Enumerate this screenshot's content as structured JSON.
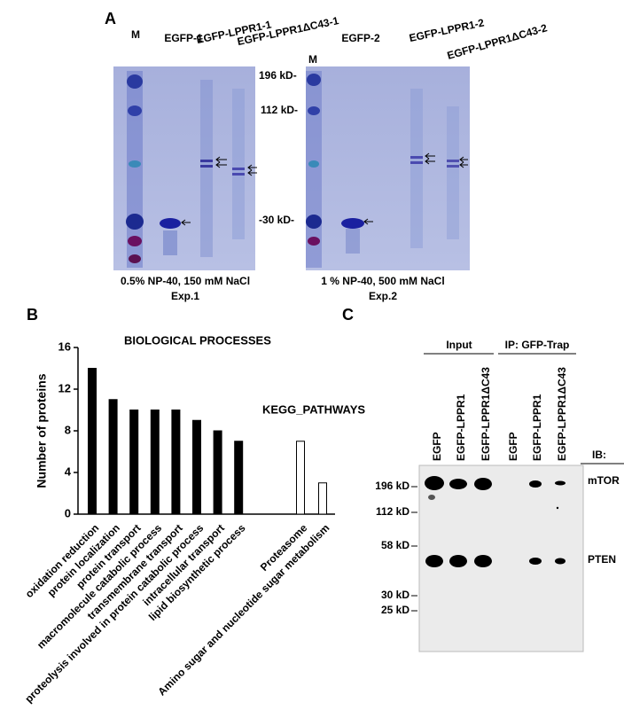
{
  "panel_a": {
    "label": "A",
    "gels": [
      {
        "lanes": [
          "M",
          "EGFP-1",
          "EGFP-LPPR1-1",
          "EGFP-LPPR1ΔC43-1"
        ],
        "markers": [
          "196 kD-",
          "112 kD-",
          "-30 kD-"
        ],
        "condition": "0.5% NP-40, 150 mM NaCl",
        "experiment": "Exp.1"
      },
      {
        "lanes": [
          "M",
          "EGFP-2",
          "EGFP-LPPR1-2",
          "EGFP-LPPR1ΔC43-2"
        ],
        "condition": "1 % NP-40, 500 mM NaCl",
        "experiment": "Exp.2"
      }
    ]
  },
  "chart_data": {
    "type": "bar",
    "panel_label": "B",
    "y_label": "Number of proteins",
    "categories": [
      "oxidation reduction",
      "protein localization",
      "protein transport",
      "macromolecule catabolic process",
      "transmembrane transport",
      "proteolysis involved in protein catabolic process",
      "intracellular transport",
      "lipid biosynthetic process",
      "Proteasome",
      "Amino sugar and nucleotide sugar metabolism"
    ],
    "series": [
      {
        "name": "BIOLOGICAL PROCESSES",
        "color": "#000000",
        "values": [
          14,
          11,
          10,
          10,
          10,
          9,
          8,
          7,
          null,
          null
        ]
      },
      {
        "name": "KEGG_PATHWAYS",
        "color": "#ffffff",
        "values": [
          null,
          null,
          null,
          null,
          null,
          null,
          null,
          null,
          7,
          3
        ]
      }
    ],
    "ylim": [
      0,
      16
    ],
    "yticks": [
      0,
      4,
      8,
      12,
      16
    ]
  },
  "panel_c": {
    "label": "C",
    "groups": [
      "Input",
      "IP: GFP-Trap"
    ],
    "lanes": [
      "EGFP",
      "EGFP-LPPR1",
      "EGFP-LPPR1ΔC43",
      "EGFP",
      "EGFP-LPPR1",
      "EGFP-LPPR1ΔC43"
    ],
    "ib_label": "IB:",
    "targets": [
      "mTOR",
      "PTEN"
    ],
    "markers": [
      "196 kD",
      "112 kD",
      "58 kD",
      "30 kD",
      "25 kD"
    ]
  }
}
